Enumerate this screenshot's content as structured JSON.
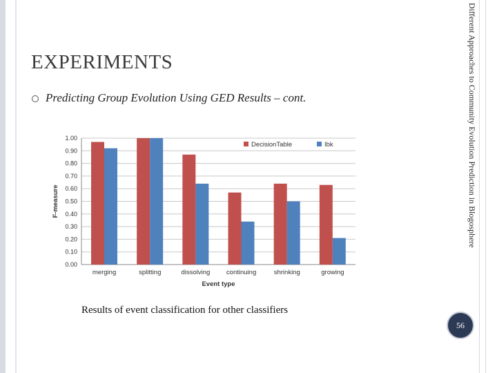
{
  "slide": {
    "title": "EXPERIMENTS",
    "subtitle": "Predicting Group Evolution Using GED Results – cont.",
    "side_text": "Different Approaches to Community Evolution Prediction in Blogosphere",
    "caption": "Results of event classification for other classifiers",
    "page_number": "56"
  },
  "colors": {
    "decision_table": "#c0504d",
    "ibk": "#4f81bd",
    "page_badge": "#2d3a55"
  },
  "chart_data": {
    "type": "bar",
    "categories": [
      "merging",
      "splitting",
      "dissolving",
      "continuing",
      "shrinking",
      "growing"
    ],
    "series": [
      {
        "name": "DecisionTable",
        "values": [
          0.97,
          1.0,
          0.87,
          0.57,
          0.64,
          0.63
        ]
      },
      {
        "name": "Ibk",
        "values": [
          0.92,
          1.0,
          0.64,
          0.34,
          0.5,
          0.21
        ]
      }
    ],
    "xlabel": "Event type",
    "ylabel": "F-measure",
    "ylim": [
      0.0,
      1.0
    ],
    "yticks": [
      "0.00",
      "0.10",
      "0.20",
      "0.30",
      "0.40",
      "0.50",
      "0.60",
      "0.70",
      "0.80",
      "0.90",
      "1.00"
    ],
    "grid": true,
    "legend": "top-right"
  }
}
